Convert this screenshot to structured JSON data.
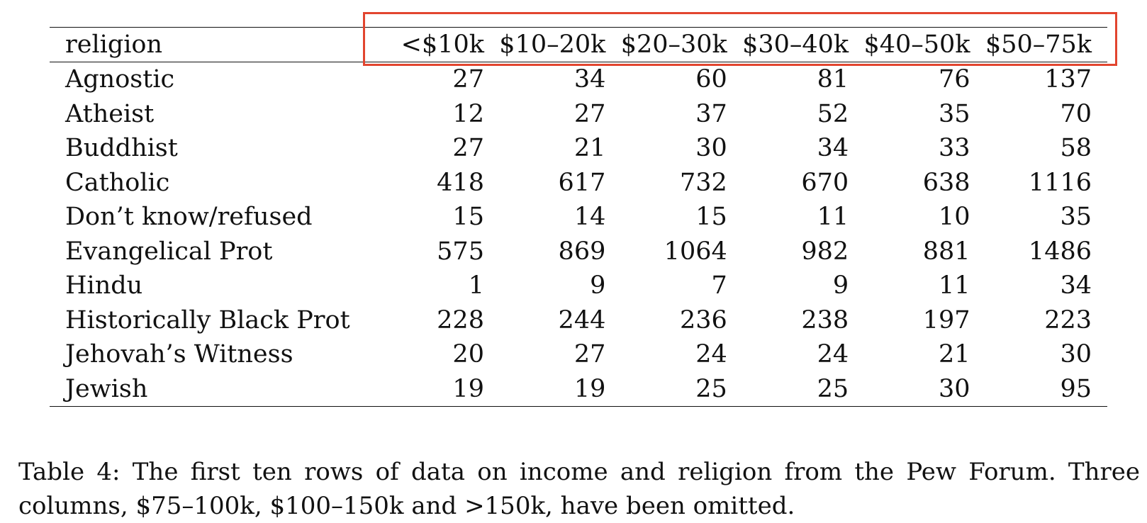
{
  "table": {
    "headers": [
      "religion",
      "<$10k",
      "$10–20k",
      "$20–30k",
      "$30–40k",
      "$40–50k",
      "$50–75k"
    ],
    "rows": [
      [
        "Agnostic",
        "27",
        "34",
        "60",
        "81",
        "76",
        "137"
      ],
      [
        "Atheist",
        "12",
        "27",
        "37",
        "52",
        "35",
        "70"
      ],
      [
        "Buddhist",
        "27",
        "21",
        "30",
        "34",
        "33",
        "58"
      ],
      [
        "Catholic",
        "418",
        "617",
        "732",
        "670",
        "638",
        "1116"
      ],
      [
        "Don’t know/refused",
        "15",
        "14",
        "15",
        "11",
        "10",
        "35"
      ],
      [
        "Evangelical Prot",
        "575",
        "869",
        "1064",
        "982",
        "881",
        "1486"
      ],
      [
        "Hindu",
        "1",
        "9",
        "7",
        "9",
        "11",
        "34"
      ],
      [
        "Historically Black Prot",
        "228",
        "244",
        "236",
        "238",
        "197",
        "223"
      ],
      [
        "Jehovah’s Witness",
        "20",
        "27",
        "24",
        "24",
        "21",
        "30"
      ],
      [
        "Jewish",
        "19",
        "19",
        "25",
        "25",
        "30",
        "95"
      ]
    ]
  },
  "caption": "Table 4: The first ten rows of data on income and religion from the Pew Forum. Three columns, $75–100k, $100–150k and >150k, have been omitted.",
  "colors": {
    "highlight_border": "#e2452f",
    "text": "#111111",
    "background": "#ffffff"
  }
}
